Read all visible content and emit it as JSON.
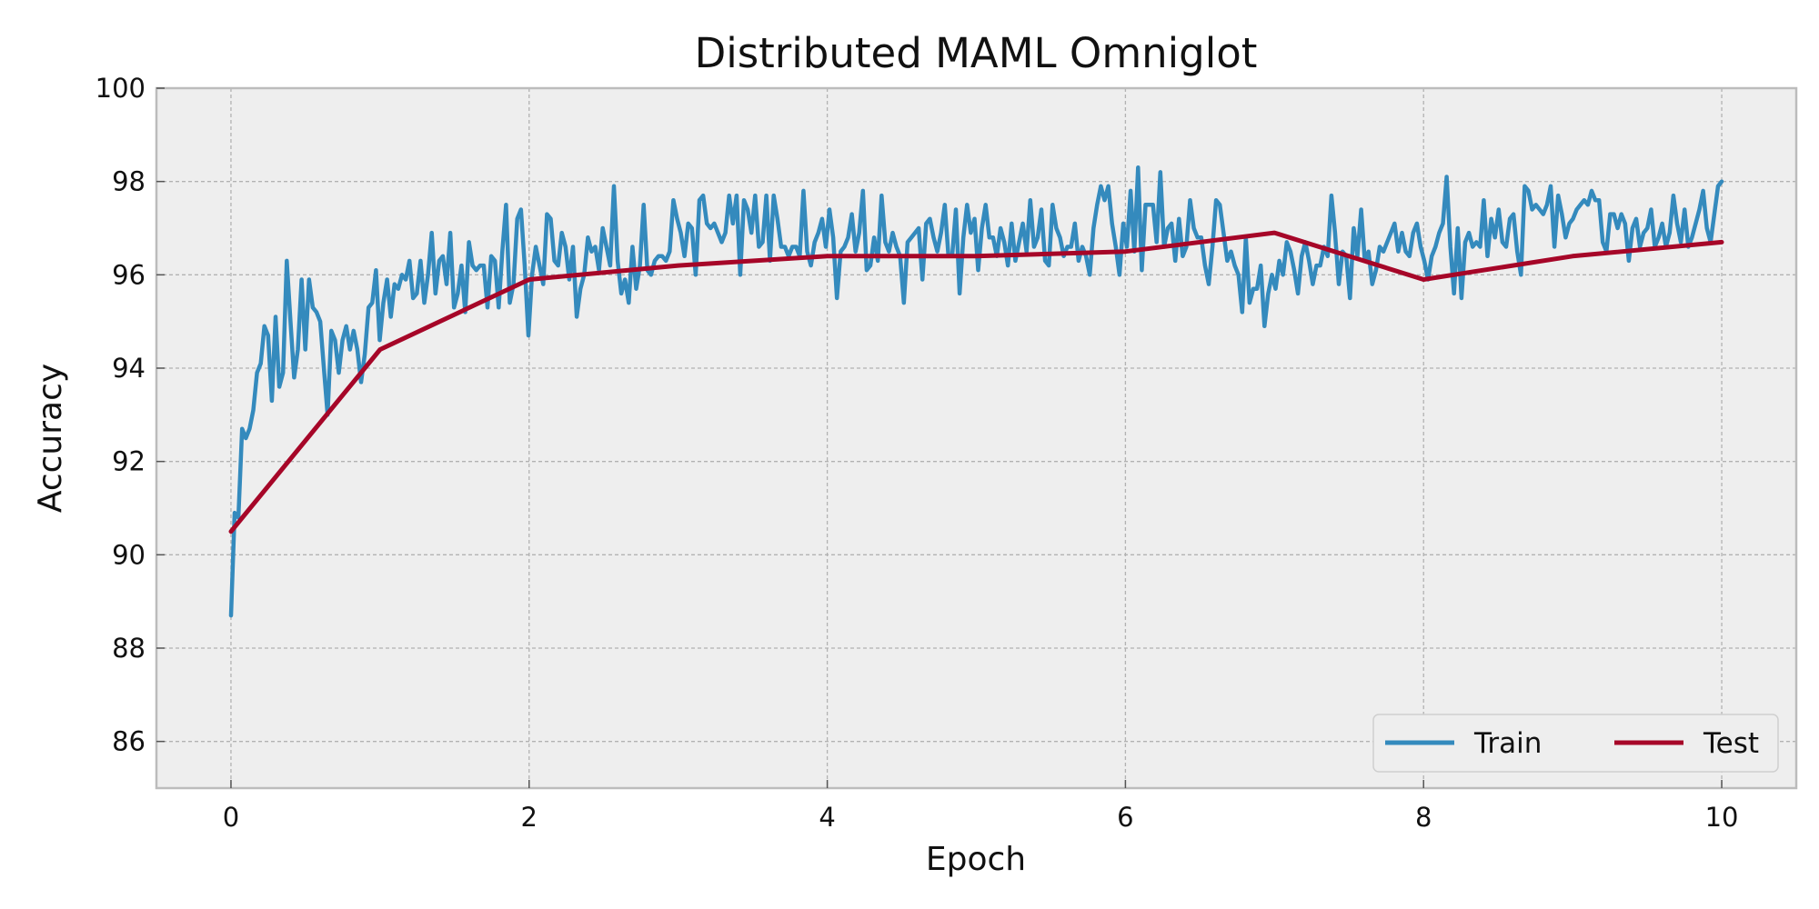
{
  "chart_data": {
    "type": "line",
    "title": "Distributed MAML Omniglot",
    "xlabel": "Epoch",
    "ylabel": "Accuracy",
    "xlim": [
      -0.5,
      10.5
    ],
    "ylim": [
      85,
      100
    ],
    "xticks": [
      0,
      2,
      4,
      6,
      8,
      10
    ],
    "yticks": [
      86,
      88,
      90,
      92,
      94,
      96,
      98,
      100
    ],
    "grid": true,
    "legend_position": "lower-right",
    "legend_ncol": 2,
    "series": [
      {
        "name": "Train",
        "color": "#348ABD",
        "x_start": 0,
        "x_end": 10,
        "values": [
          88.7,
          90.9,
          90.8,
          92.7,
          92.5,
          92.7,
          93.1,
          93.9,
          94.1,
          94.9,
          94.7,
          93.3,
          95.1,
          93.6,
          93.9,
          96.3,
          95.0,
          93.8,
          94.4,
          95.9,
          94.4,
          95.9,
          95.3,
          95.2,
          95.0,
          94.0,
          93.0,
          94.8,
          94.6,
          93.9,
          94.6,
          94.9,
          94.4,
          94.8,
          94.4,
          93.7,
          94.3,
          95.3,
          95.4,
          96.1,
          94.6,
          95.4,
          95.9,
          95.1,
          95.8,
          95.7,
          96.0,
          95.9,
          96.3,
          95.5,
          95.6,
          96.3,
          95.4,
          96.0,
          96.9,
          95.6,
          96.3,
          96.4,
          95.8,
          96.9,
          95.3,
          95.6,
          96.2,
          95.2,
          96.7,
          96.2,
          96.1,
          96.2,
          96.2,
          95.3,
          96.4,
          96.3,
          95.3,
          96.5,
          97.5,
          95.4,
          95.8,
          97.2,
          97.4,
          96.2,
          94.7,
          96.0,
          96.6,
          96.2,
          95.8,
          97.3,
          97.2,
          96.3,
          96.2,
          96.9,
          96.6,
          95.9,
          96.6,
          95.1,
          95.7,
          96.0,
          96.8,
          96.5,
          96.6,
          96.1,
          97.0,
          96.6,
          96.2,
          97.9,
          96.3,
          95.6,
          95.9,
          95.4,
          96.6,
          95.7,
          96.2,
          97.5,
          96.1,
          96.0,
          96.3,
          96.4,
          96.4,
          96.3,
          96.5,
          97.6,
          97.2,
          96.9,
          96.4,
          97.1,
          97.0,
          96.0,
          97.6,
          97.7,
          97.1,
          97.0,
          97.1,
          96.9,
          96.7,
          96.9,
          97.7,
          97.1,
          97.7,
          96.0,
          97.6,
          97.4,
          96.9,
          97.7,
          96.6,
          96.7,
          97.7,
          96.3,
          97.7,
          97.2,
          96.6,
          96.6,
          96.4,
          96.6,
          96.6,
          96.4,
          97.8,
          96.5,
          96.2,
          96.7,
          96.9,
          97.2,
          96.6,
          97.4,
          96.8,
          95.5,
          96.5,
          96.6,
          96.8,
          97.3,
          96.5,
          96.9,
          97.8,
          96.1,
          96.2,
          96.8,
          96.3,
          97.7,
          96.7,
          96.5,
          96.9,
          96.6,
          96.4,
          95.4,
          96.7,
          96.8,
          96.9,
          97.0,
          95.9,
          97.1,
          97.2,
          96.8,
          96.5,
          96.9,
          97.5,
          96.4,
          96.4,
          97.4,
          95.6,
          96.8,
          97.5,
          96.9,
          97.2,
          96.1,
          97.0,
          97.5,
          96.8,
          96.8,
          96.4,
          97.0,
          96.7,
          96.2,
          97.1,
          96.3,
          96.7,
          97.1,
          96.5,
          97.6,
          96.6,
          96.8,
          97.4,
          96.3,
          96.2,
          97.5,
          97.0,
          96.8,
          96.4,
          96.6,
          96.6,
          97.1,
          96.3,
          96.6,
          96.4,
          96.0,
          97.0,
          97.5,
          97.9,
          97.6,
          97.9,
          97.1,
          96.6,
          96.0,
          97.1,
          96.6,
          97.8,
          96.5,
          98.3,
          96.1,
          97.5,
          97.5,
          97.5,
          96.7,
          98.2,
          96.6,
          97.0,
          97.1,
          96.3,
          97.2,
          96.4,
          96.6,
          97.6,
          97.0,
          96.8,
          96.8,
          96.2,
          95.8,
          96.6,
          97.6,
          97.5,
          96.9,
          96.3,
          96.5,
          96.2,
          96.0,
          95.2,
          96.8,
          95.4,
          95.7,
          95.7,
          96.2,
          94.9,
          95.6,
          96.0,
          95.7,
          96.3,
          96.0,
          96.7,
          96.5,
          96.1,
          95.6,
          96.4,
          96.7,
          96.3,
          95.8,
          96.2,
          96.2,
          96.6,
          96.4,
          97.7,
          96.9,
          95.8,
          96.5,
          96.4,
          95.5,
          97.0,
          96.4,
          97.4,
          96.3,
          96.5,
          95.8,
          96.1,
          96.6,
          96.5,
          96.7,
          96.9,
          97.1,
          96.5,
          96.9,
          96.5,
          96.4,
          96.9,
          97.1,
          96.6,
          96.3,
          95.9,
          96.4,
          96.6,
          96.9,
          97.1,
          98.1,
          96.6,
          95.6,
          97.0,
          95.5,
          96.7,
          96.9,
          96.6,
          96.7,
          96.6,
          97.6,
          96.4,
          97.2,
          96.8,
          97.4,
          96.7,
          96.6,
          97.2,
          97.3,
          96.5,
          96.0,
          97.9,
          97.8,
          97.4,
          97.5,
          97.4,
          97.3,
          97.5,
          97.9,
          96.6,
          97.7,
          97.3,
          96.8,
          97.1,
          97.2,
          97.4,
          97.5,
          97.6,
          97.5,
          97.8,
          97.6,
          97.6,
          96.7,
          96.5,
          97.3,
          97.3,
          97.0,
          97.3,
          97.1,
          96.3,
          97.0,
          97.2,
          96.6,
          96.9,
          97.0,
          97.4,
          96.6,
          96.8,
          97.1,
          96.6,
          96.9,
          97.7,
          97.1,
          96.7,
          97.4,
          96.6,
          96.8,
          97.1,
          97.4,
          97.8,
          97.0,
          96.7,
          97.3,
          97.9,
          98.0
        ]
      },
      {
        "name": "Test",
        "color": "#A60628",
        "x": [
          0,
          1,
          2,
          3,
          4,
          5,
          6,
          7,
          8,
          9,
          10
        ],
        "values": [
          90.5,
          94.4,
          95.9,
          96.2,
          96.4,
          96.4,
          96.5,
          96.9,
          95.9,
          96.4,
          96.7
        ]
      }
    ]
  }
}
